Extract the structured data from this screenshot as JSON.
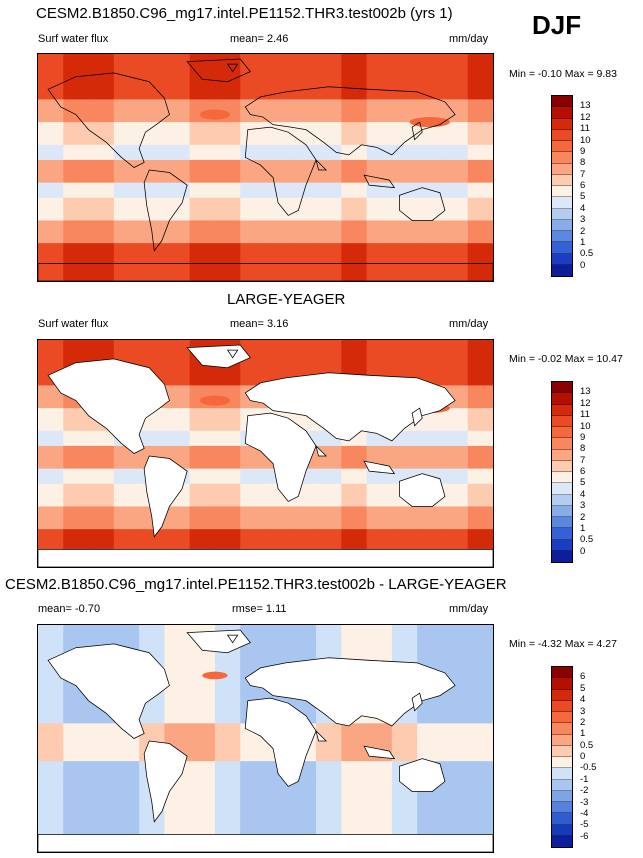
{
  "season": "DJF",
  "panels": [
    {
      "title": "CESM2.B1850.C96_mg17.intel.PE1152.THR3.test002b (yrs 1)",
      "left_label": "Surf water flux",
      "mid_label": "mean=  2.46",
      "units": "mm/day",
      "minmax": "Min =  -0.10 Max =   9.83",
      "colorbar_labels": [
        "13",
        "12",
        "11",
        "10",
        "9",
        "8",
        "7",
        "6",
        "5",
        "4",
        "3",
        "2",
        "1",
        "0.5",
        "0"
      ],
      "colorbar_colors": [
        "#8a0000",
        "#b40f00",
        "#d42a0a",
        "#ea4a24",
        "#f4683c",
        "#f8875f",
        "#fba682",
        "#fccbb0",
        "#fdf0e4",
        "#dce8f8",
        "#b2cdf0",
        "#87ace8",
        "#5a87e0",
        "#3461d6",
        "#1b3ec0",
        "#0c1e9c"
      ],
      "field": "model"
    },
    {
      "title": "LARGE-YEAGER",
      "left_label": "Surf water flux",
      "mid_label": "mean=  3.16",
      "units": "mm/day",
      "minmax": "Min =  -0.02 Max =  10.47",
      "colorbar_labels": [
        "13",
        "12",
        "11",
        "10",
        "9",
        "8",
        "7",
        "6",
        "5",
        "4",
        "3",
        "2",
        "1",
        "0.5",
        "0"
      ],
      "colorbar_colors": [
        "#8a0000",
        "#b40f00",
        "#d42a0a",
        "#ea4a24",
        "#f4683c",
        "#f8875f",
        "#fba682",
        "#fccbb0",
        "#fdf0e4",
        "#dce8f8",
        "#b2cdf0",
        "#87ace8",
        "#5a87e0",
        "#3461d6",
        "#1b3ec0",
        "#0c1e9c"
      ],
      "field": "obs"
    },
    {
      "title": "CESM2.B1850.C96_mg17.intel.PE1152.THR3.test002b - LARGE-YEAGER",
      "left_label": "mean=  -0.70",
      "mid_label": "rmse=  1.11",
      "units": "mm/day",
      "minmax": "Min =  -4.32 Max =   4.27",
      "colorbar_labels": [
        "6",
        "5",
        "4",
        "3",
        "2",
        "1",
        "0.5",
        "0",
        "-0.5",
        "-1",
        "-2",
        "-3",
        "-4",
        "-5",
        "-6"
      ],
      "colorbar_colors": [
        "#8a0000",
        "#b40f00",
        "#d42a0a",
        "#ea4a24",
        "#f4683c",
        "#f8875f",
        "#fba682",
        "#fccbb0",
        "#fdf0e4",
        "#cfe2f8",
        "#a8c6f0",
        "#7ea4e6",
        "#5580dc",
        "#2f5ccf",
        "#173bb8",
        "#0c1e9c"
      ],
      "field": "diff"
    }
  ]
}
